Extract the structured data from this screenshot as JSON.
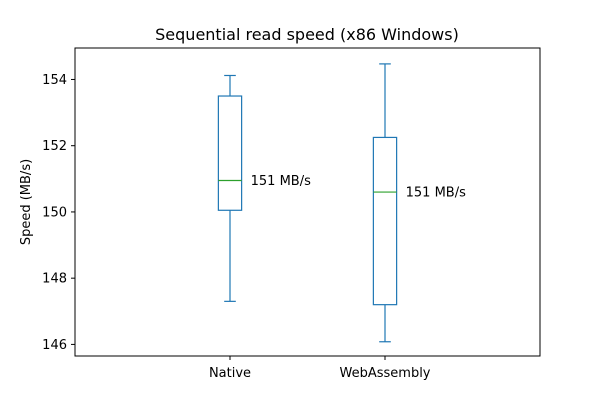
{
  "chart_data": {
    "type": "box",
    "title": "Sequential read speed (x86 Windows)",
    "xlabel": "",
    "ylabel": "Speed (MB/s)",
    "ylim": [
      145.65,
      154.95
    ],
    "yticks": [
      146,
      148,
      150,
      152,
      154
    ],
    "grid": false,
    "colors": {
      "box": "#1f77b4",
      "median": "#2ca02c",
      "axis": "#000000"
    },
    "categories": [
      "Native",
      "WebAssembly"
    ],
    "boxes": [
      {
        "category": "Native",
        "whisker_low": 147.3,
        "q1": 150.05,
        "median": 150.95,
        "q3": 153.5,
        "whisker_high": 154.12,
        "annotation": "151 MB/s"
      },
      {
        "category": "WebAssembly",
        "whisker_low": 146.08,
        "q1": 147.2,
        "median": 150.6,
        "q3": 152.25,
        "whisker_high": 154.47,
        "annotation": "151 MB/s"
      }
    ]
  }
}
